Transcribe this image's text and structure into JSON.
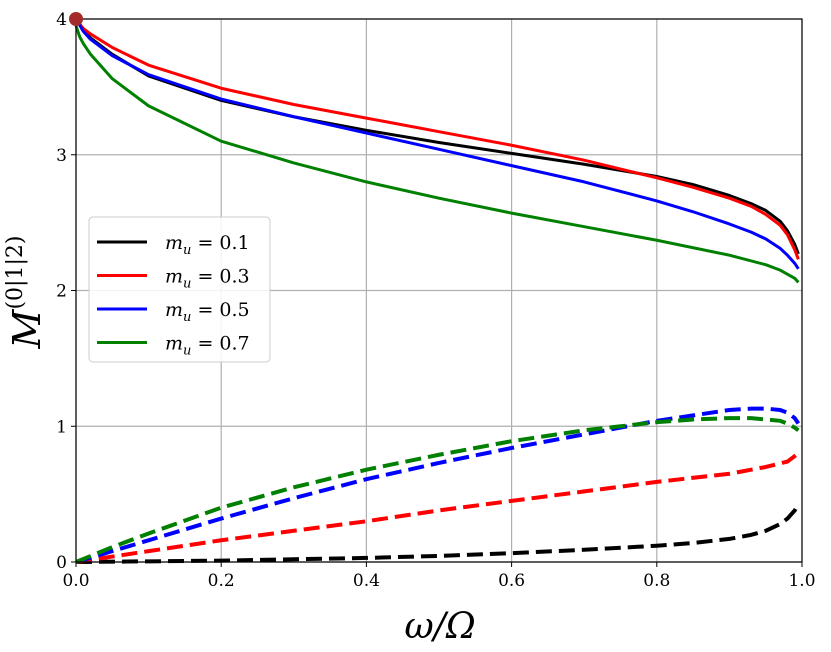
{
  "chart_data": {
    "type": "line",
    "xlabel": "ω/Ω",
    "ylabel_main": "M",
    "ylabel_sup": "(0|1|2)",
    "xlim": [
      0,
      1
    ],
    "ylim": [
      0,
      4
    ],
    "xticks": [
      0.0,
      0.2,
      0.4,
      0.6,
      0.8,
      1.0
    ],
    "xtick_labels": [
      "0.0",
      "0.2",
      "0.4",
      "0.6",
      "0.8",
      "1.0"
    ],
    "yticks": [
      0,
      1,
      2,
      3,
      4
    ],
    "ytick_labels": [
      "0",
      "1",
      "2",
      "3",
      "4"
    ],
    "grid": true,
    "legend_position": "center-left",
    "marker": {
      "x": 0.0,
      "y": 4.0,
      "color": "#a52a2a"
    },
    "series": [
      {
        "name": "m_u = 0.1",
        "legend_label": "mu = 0.1",
        "color": "#000000",
        "style": "solid",
        "x": [
          0.0,
          0.01,
          0.02,
          0.05,
          0.1,
          0.2,
          0.3,
          0.4,
          0.5,
          0.6,
          0.7,
          0.8,
          0.85,
          0.9,
          0.93,
          0.95,
          0.97,
          0.98,
          0.99,
          0.995
        ],
        "y": [
          4.0,
          3.92,
          3.86,
          3.74,
          3.58,
          3.4,
          3.28,
          3.18,
          3.09,
          3.01,
          2.93,
          2.84,
          2.78,
          2.7,
          2.64,
          2.59,
          2.51,
          2.44,
          2.34,
          2.27
        ]
      },
      {
        "name": "m_u = 0.3",
        "legend_label": "mu = 0.3",
        "color": "#ff0000",
        "style": "solid",
        "x": [
          0.0,
          0.01,
          0.02,
          0.05,
          0.1,
          0.2,
          0.3,
          0.4,
          0.5,
          0.6,
          0.7,
          0.8,
          0.85,
          0.9,
          0.93,
          0.95,
          0.97,
          0.98,
          0.99,
          0.995
        ],
        "y": [
          4.0,
          3.93,
          3.89,
          3.79,
          3.66,
          3.49,
          3.37,
          3.27,
          3.17,
          3.07,
          2.96,
          2.83,
          2.76,
          2.68,
          2.62,
          2.56,
          2.48,
          2.41,
          2.3,
          2.23
        ]
      },
      {
        "name": "m_u = 0.5",
        "legend_label": "mu = 0.5",
        "color": "#0000ff",
        "style": "solid",
        "x": [
          0.0,
          0.01,
          0.02,
          0.05,
          0.1,
          0.2,
          0.3,
          0.4,
          0.5,
          0.6,
          0.7,
          0.8,
          0.85,
          0.9,
          0.93,
          0.95,
          0.97,
          0.98,
          0.99,
          0.995
        ],
        "y": [
          4.0,
          3.91,
          3.85,
          3.73,
          3.59,
          3.41,
          3.28,
          3.16,
          3.04,
          2.92,
          2.8,
          2.66,
          2.58,
          2.49,
          2.43,
          2.38,
          2.31,
          2.26,
          2.2,
          2.16
        ]
      },
      {
        "name": "m_u = 0.7",
        "legend_label": "mu = 0.7",
        "color": "#008000",
        "style": "solid",
        "x": [
          0.0,
          0.005,
          0.01,
          0.02,
          0.05,
          0.1,
          0.2,
          0.3,
          0.4,
          0.5,
          0.6,
          0.7,
          0.8,
          0.9,
          0.95,
          0.97,
          0.99,
          0.995
        ],
        "y": [
          3.95,
          3.87,
          3.82,
          3.74,
          3.56,
          3.36,
          3.1,
          2.94,
          2.8,
          2.68,
          2.57,
          2.47,
          2.37,
          2.26,
          2.19,
          2.15,
          2.09,
          2.06
        ]
      },
      {
        "name": "dashed black",
        "color": "#000000",
        "style": "dashed",
        "x": [
          0.0,
          0.1,
          0.2,
          0.3,
          0.4,
          0.5,
          0.6,
          0.7,
          0.8,
          0.85,
          0.9,
          0.93,
          0.95,
          0.97,
          0.98,
          0.99,
          0.995
        ],
        "y": [
          0.0,
          0.005,
          0.01,
          0.02,
          0.03,
          0.045,
          0.065,
          0.09,
          0.12,
          0.14,
          0.17,
          0.2,
          0.23,
          0.28,
          0.32,
          0.38,
          0.43
        ]
      },
      {
        "name": "dashed red",
        "color": "#ff0000",
        "style": "dashed",
        "x": [
          0.0,
          0.05,
          0.1,
          0.2,
          0.3,
          0.4,
          0.5,
          0.6,
          0.7,
          0.8,
          0.9,
          0.95,
          0.98,
          0.995
        ],
        "y": [
          0.0,
          0.04,
          0.08,
          0.16,
          0.23,
          0.3,
          0.38,
          0.45,
          0.52,
          0.59,
          0.65,
          0.7,
          0.74,
          0.8
        ]
      },
      {
        "name": "dashed blue",
        "color": "#0000ff",
        "style": "dashed",
        "x": [
          0.0,
          0.05,
          0.1,
          0.2,
          0.3,
          0.4,
          0.5,
          0.6,
          0.7,
          0.8,
          0.85,
          0.9,
          0.93,
          0.95,
          0.97,
          0.98,
          0.99,
          0.995
        ],
        "y": [
          0.0,
          0.08,
          0.16,
          0.32,
          0.47,
          0.61,
          0.73,
          0.84,
          0.94,
          1.04,
          1.08,
          1.12,
          1.13,
          1.13,
          1.12,
          1.1,
          1.06,
          1.02
        ]
      },
      {
        "name": "dashed green",
        "color": "#008000",
        "style": "dashed",
        "x": [
          0.0,
          0.05,
          0.1,
          0.2,
          0.3,
          0.4,
          0.5,
          0.6,
          0.7,
          0.8,
          0.85,
          0.9,
          0.93,
          0.95,
          0.97,
          0.98,
          0.99,
          0.995
        ],
        "y": [
          0.0,
          0.11,
          0.21,
          0.4,
          0.55,
          0.68,
          0.79,
          0.89,
          0.97,
          1.03,
          1.05,
          1.06,
          1.06,
          1.05,
          1.04,
          1.02,
          0.99,
          0.97
        ]
      }
    ],
    "legend": [
      {
        "label_var": "m",
        "label_sub": "u",
        "label_rest": " = 0.1",
        "color": "#000000"
      },
      {
        "label_var": "m",
        "label_sub": "u",
        "label_rest": " = 0.3",
        "color": "#ff0000"
      },
      {
        "label_var": "m",
        "label_sub": "u",
        "label_rest": " = 0.5",
        "color": "#0000ff"
      },
      {
        "label_var": "m",
        "label_sub": "u",
        "label_rest": " = 0.7",
        "color": "#008000"
      }
    ]
  }
}
